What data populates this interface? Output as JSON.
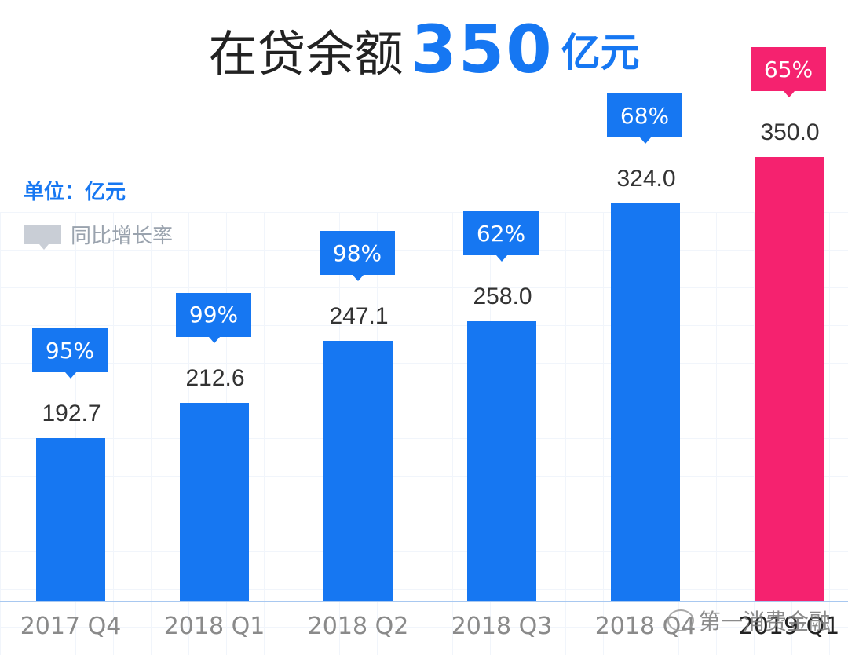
{
  "header": {
    "prefix": "在贷余额",
    "number": "350",
    "suffix": "亿元"
  },
  "unit_label": "单位：亿元",
  "legend": {
    "label": "同比增长率",
    "swatch_color": "#c9ced6"
  },
  "watermark": "第一消费金融",
  "colors": {
    "primary": "#1677f2",
    "highlight": "#f5226f"
  },
  "chart_data": {
    "type": "bar",
    "title": "在贷余额 350 亿元",
    "ylabel": "单位：亿元",
    "xlabel": "",
    "categories": [
      "2017 Q4",
      "2018 Q1",
      "2018 Q2",
      "2018 Q3",
      "2018 Q4",
      "2019 Q1"
    ],
    "series": [
      {
        "name": "在贷余额",
        "values": [
          192.7,
          212.6,
          247.1,
          258.0,
          324.0,
          350.0
        ]
      },
      {
        "name": "同比增长率",
        "values": [
          "95%",
          "99%",
          "98%",
          "62%",
          "68%",
          "65%"
        ]
      }
    ],
    "value_labels": [
      "192.7",
      "212.6",
      "247.1",
      "258.0",
      "324.0",
      "350.0"
    ],
    "ylim": [
      0,
      350
    ],
    "grid": true,
    "highlight_index": 5
  }
}
